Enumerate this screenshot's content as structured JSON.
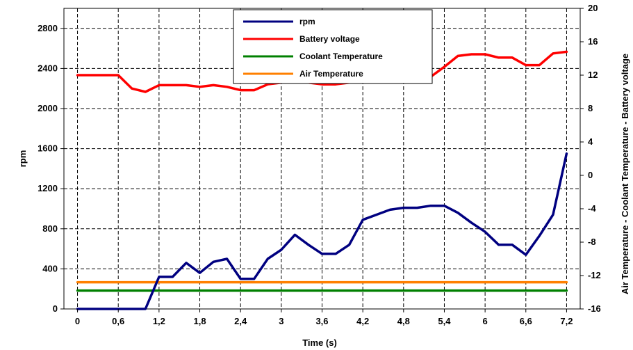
{
  "chart_data": {
    "type": "line",
    "xlabel": "Time (s)",
    "ylabel_left": "rpm",
    "ylabel_right": "Air Temperature - Coolant Temperature - Battery voltage",
    "xlim": [
      -0.2,
      7.4
    ],
    "ylim_left": [
      0,
      3000
    ],
    "ylim_right": [
      -16,
      20
    ],
    "x_ticks": [
      "0",
      "0,6",
      "1,2",
      "1,8",
      "2,4",
      "3",
      "3,6",
      "4,2",
      "4,8",
      "5,4",
      "6",
      "6,6",
      "7,2"
    ],
    "x_tick_values": [
      0,
      0.6,
      1.2,
      1.8,
      2.4,
      3.0,
      3.6,
      4.2,
      4.8,
      5.4,
      6.0,
      6.6,
      7.2
    ],
    "y_left_ticks": [
      "0",
      "400",
      "800",
      "1200",
      "1600",
      "2000",
      "2400",
      "2800"
    ],
    "y_left_tick_values": [
      0,
      400,
      800,
      1200,
      1600,
      2000,
      2400,
      2800
    ],
    "y_right_ticks": [
      "-16",
      "-12",
      "-8",
      "-4",
      "0",
      "4",
      "8",
      "12",
      "16",
      "20"
    ],
    "y_right_tick_values": [
      -16,
      -12,
      -8,
      -4,
      0,
      4,
      8,
      12,
      16,
      20
    ],
    "grid": true,
    "legend_position": "top-center",
    "series": [
      {
        "name": "rpm",
        "axis": "left",
        "color": "#000080",
        "x": [
          0,
          0.3,
          0.6,
          0.9,
          1.0,
          1.2,
          1.4,
          1.6,
          1.8,
          2.0,
          2.2,
          2.4,
          2.6,
          2.8,
          3.0,
          3.2,
          3.4,
          3.6,
          3.8,
          4.0,
          4.2,
          4.4,
          4.6,
          4.8,
          5.0,
          5.2,
          5.4,
          5.6,
          5.8,
          6.0,
          6.2,
          6.4,
          6.6,
          6.8,
          7.0,
          7.2
        ],
        "y": [
          0,
          0,
          0,
          0,
          0,
          320,
          320,
          460,
          360,
          470,
          500,
          300,
          300,
          500,
          590,
          740,
          640,
          550,
          550,
          640,
          890,
          940,
          990,
          1010,
          1010,
          1030,
          1030,
          960,
          860,
          770,
          640,
          640,
          540,
          730,
          940,
          1550
        ]
      },
      {
        "name": "Battery voltage",
        "axis": "right",
        "color": "#ff0000",
        "x": [
          0,
          0.3,
          0.6,
          0.8,
          1.0,
          1.2,
          1.4,
          1.6,
          1.8,
          2.0,
          2.2,
          2.4,
          2.6,
          2.8,
          3.0,
          3.2,
          3.4,
          3.6,
          3.8,
          4.0,
          4.2,
          4.4,
          4.6,
          4.8,
          5.0,
          5.2,
          5.4,
          5.6,
          5.8,
          6.0,
          6.2,
          6.4,
          6.6,
          6.8,
          7.0,
          7.2
        ],
        "y": [
          12,
          12,
          12,
          10.4,
          10,
          10.8,
          10.8,
          10.8,
          10.6,
          10.8,
          10.6,
          10.2,
          10.2,
          10.9,
          11.1,
          11.3,
          11.1,
          10.9,
          10.9,
          11.1,
          11.3,
          11.3,
          11.3,
          11.5,
          11.5,
          11.8,
          13,
          14.3,
          14.5,
          14.5,
          14.1,
          14.1,
          13.2,
          13.2,
          14.6,
          14.8
        ]
      },
      {
        "name": "Coolant Temperature",
        "axis": "right",
        "color": "#008000",
        "x": [
          0,
          7.2
        ],
        "y": [
          -13.8,
          -13.8
        ]
      },
      {
        "name": "Air Temperature",
        "axis": "right",
        "color": "#ff8000",
        "x": [
          0,
          7.2
        ],
        "y": [
          -12.8,
          -12.8
        ]
      }
    ]
  }
}
